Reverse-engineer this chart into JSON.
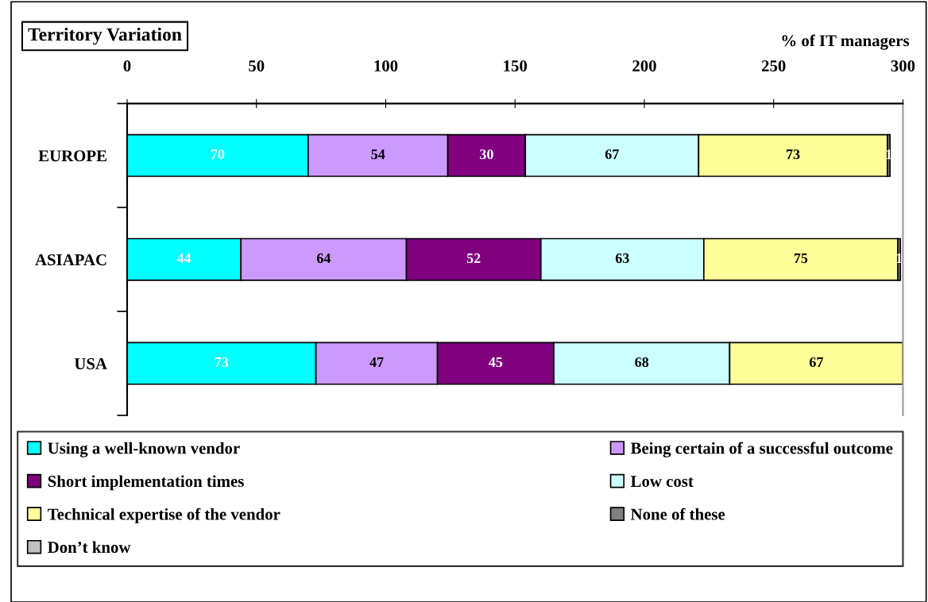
{
  "chart_data": {
    "type": "bar",
    "orientation": "horizontal",
    "stacked": true,
    "title": "Territory Variation",
    "xlabel": "% of IT managers",
    "categories": [
      "EUROPE",
      "ASIAPAC",
      "USA"
    ],
    "xlim": [
      0,
      300
    ],
    "xticks": [
      0,
      50,
      100,
      150,
      200,
      250,
      300
    ],
    "grid": false,
    "legend": "bottom",
    "series": [
      {
        "name": "Using a well-known vendor",
        "color": "#00ffff",
        "values": [
          70,
          44,
          73
        ],
        "value_labels": [
          "70",
          "44",
          "73"
        ]
      },
      {
        "name": "Being certain of a successful outcome",
        "color": "#cc99ff",
        "values": [
          54,
          64,
          47
        ],
        "value_labels": [
          "54",
          "64",
          "47"
        ]
      },
      {
        "name": "Short implementation times",
        "color": "#800080",
        "values": [
          30,
          52,
          45
        ],
        "value_labels": [
          "30",
          "52",
          "45"
        ]
      },
      {
        "name": "Low cost",
        "color": "#ccffff",
        "values": [
          67,
          63,
          68
        ],
        "value_labels": [
          "67",
          "63",
          "68"
        ]
      },
      {
        "name": "Technical expertise of the vendor",
        "color": "#ffff99",
        "values": [
          73,
          75,
          67
        ],
        "value_labels": [
          "73",
          "75",
          "67"
        ]
      },
      {
        "name": "None of these",
        "color": "#808080",
        "values": [
          1,
          1,
          null
        ],
        "value_labels": [
          "1",
          "1",
          null
        ]
      },
      {
        "name": "Don’t know",
        "color": "#c0c0c0",
        "values": [
          null,
          null,
          null
        ],
        "value_labels": [
          null,
          null,
          null
        ]
      }
    ]
  }
}
